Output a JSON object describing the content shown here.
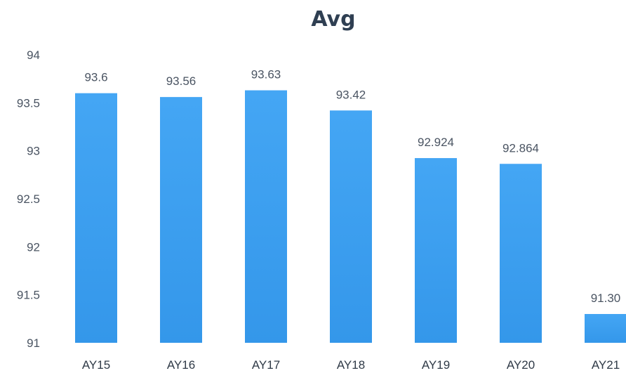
{
  "chart_data": {
    "type": "bar",
    "title": "Avg",
    "xlabel": "",
    "ylabel": "",
    "categories": [
      "AY15",
      "AY16",
      "AY17",
      "AY18",
      "AY19",
      "AY20",
      "AY21"
    ],
    "values": [
      93.6,
      93.56,
      93.63,
      93.42,
      92.924,
      92.864,
      91.3
    ],
    "data_labels": [
      "93.6",
      "93.56",
      "93.63",
      "93.42",
      "92.924",
      "92.864",
      "91.30"
    ],
    "ylim": [
      91,
      94
    ],
    "yticks": [
      94,
      93.5,
      93,
      92.5,
      92,
      91.5,
      91
    ],
    "ytick_labels": [
      "94",
      "93.5",
      "93",
      "92.5",
      "92",
      "91.5",
      "91"
    ],
    "grid": false,
    "legend": "none",
    "bar_color": "#3c9ff0"
  }
}
